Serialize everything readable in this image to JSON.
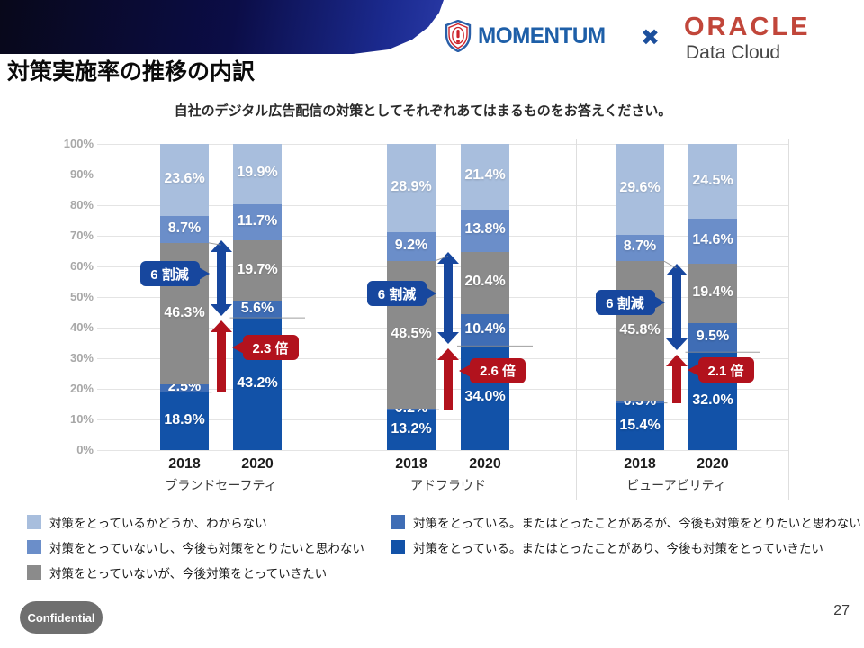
{
  "header": {
    "momentum_logo_text": "MOMENTUM",
    "partnership_separator": "✖",
    "oracle_logo_text": "ORACLE",
    "oracle_sub_text": "Data Cloud"
  },
  "page_title": "対策実施率の推移の内訳",
  "chart_data": {
    "type": "bar",
    "stacked": true,
    "title": "自社のデジタル広告配信の対策としてそれぞれあてはまるものをお答えください。",
    "ylim": [
      0,
      100
    ],
    "ytick_step": 10,
    "ytick_suffix": "%",
    "grid": true,
    "segments_bottom_to_top": [
      "対策をとっている。またはとったことがあり、今後も対策をとっていきたい",
      "対策をとっている。またはとったことがあるが、今後も対策をとりたいと思わない",
      "対策をとっていないが、今後対策をとっていきたい",
      "対策をとっていないし、今後も対策をとりたいと思わない",
      "対策をとっているかどうか、わからない"
    ],
    "segment_colors_bottom_to_top": [
      "#1252a8",
      "#3f6db5",
      "#8b8b8b",
      "#6b8ec9",
      "#a8bedd"
    ],
    "annotation_colors": {
      "decrease": "#17479e",
      "increase": "#b2121d"
    },
    "groups": [
      {
        "label": "ブランドセーフティ",
        "bars": [
          {
            "year": "2018",
            "values_bottom_to_top": [
              18.9,
              2.5,
              46.3,
              8.7,
              23.6
            ]
          },
          {
            "year": "2020",
            "values_bottom_to_top": [
              43.2,
              5.6,
              19.7,
              11.7,
              19.9
            ]
          }
        ],
        "annotations": {
          "decrease_label": "6 割減",
          "increase_label": "2.3 倍"
        }
      },
      {
        "label": "アドフラウド",
        "bars": [
          {
            "year": "2018",
            "values_bottom_to_top": [
              13.2,
              0.2,
              48.5,
              9.2,
              28.9
            ]
          },
          {
            "year": "2020",
            "values_bottom_to_top": [
              34.0,
              10.4,
              20.4,
              13.8,
              21.4
            ]
          }
        ],
        "annotations": {
          "decrease_label": "6 割減",
          "increase_label": "2.6 倍"
        }
      },
      {
        "label": "ビューアビリティ",
        "bars": [
          {
            "year": "2018",
            "values_bottom_to_top": [
              15.4,
              0.5,
              45.8,
              8.7,
              29.6
            ]
          },
          {
            "year": "2020",
            "values_bottom_to_top": [
              32.0,
              9.5,
              19.4,
              14.6,
              24.5
            ]
          }
        ],
        "annotations": {
          "decrease_label": "6 割減",
          "increase_label": "2.1 倍"
        }
      }
    ]
  },
  "legend": {
    "columns": [
      {
        "items": [
          {
            "color": "#a8bedd",
            "label": "対策をとっているかどうか、わからない"
          },
          {
            "color": "#6b8ec9",
            "label": "対策をとっていないし、今後も対策をとりたいと思わない"
          },
          {
            "color": "#8b8b8b",
            "label": "対策をとっていないが、今後対策をとっていきたい"
          }
        ]
      },
      {
        "items": [
          {
            "color": "#3f6db5",
            "label": "対策をとっている。またはとったことがあるが、今後も対策をとりたいと思わない"
          },
          {
            "color": "#1252a8",
            "label": "対策をとっている。またはとったことがあり、今後も対策をとっていきたい"
          }
        ]
      }
    ]
  },
  "footer": {
    "confidential_label": "Confidential",
    "page_number": "27"
  }
}
